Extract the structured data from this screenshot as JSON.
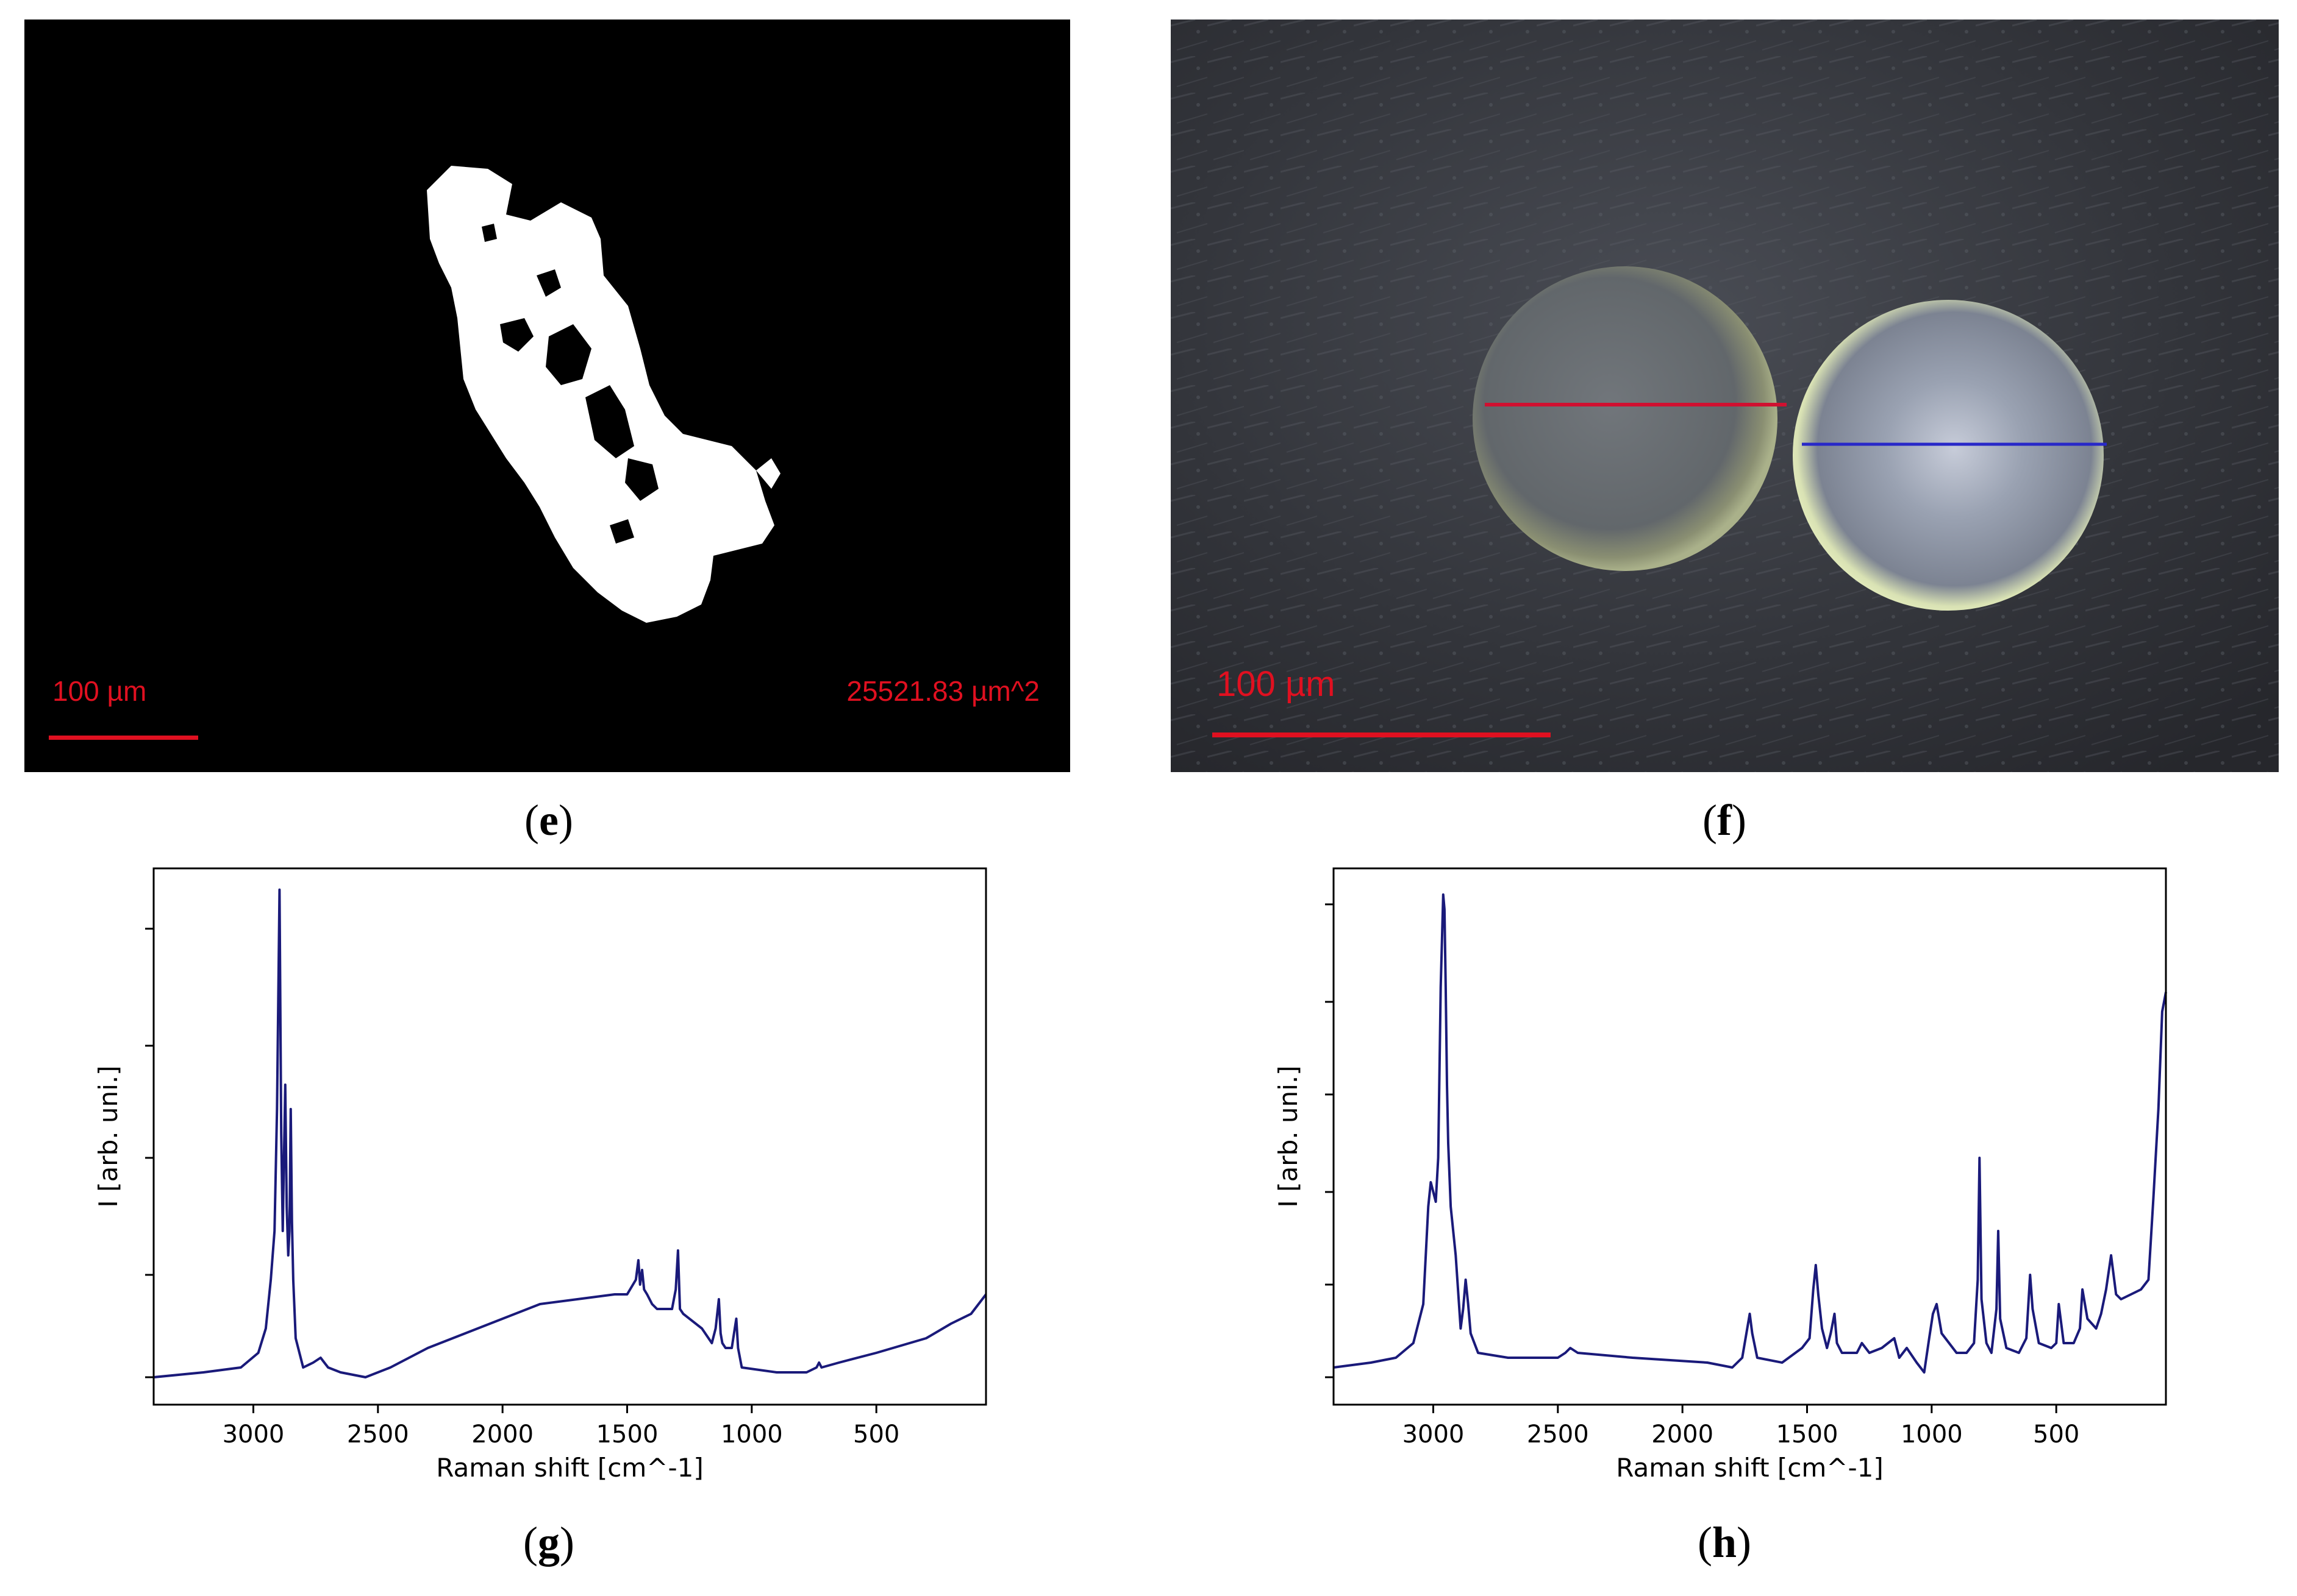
{
  "figure": {
    "panels": [
      {
        "id": "e",
        "caption_letter": "e",
        "scale_label": "100 µm",
        "area_label": "25521.83 µm^2"
      },
      {
        "id": "f",
        "caption_letter": "f",
        "scale_label": "100 µm"
      }
    ]
  },
  "colors": {
    "scale_bar": "#e01020",
    "spectrum_line": "#1a1a7a",
    "measure_red": "#d01030",
    "measure_blue": "#2828c8"
  },
  "chart_data": [
    {
      "id": "g",
      "type": "line",
      "caption_letter": "g",
      "xlabel": "Raman shift [cm^-1]",
      "ylabel": "I [arb. uni.]",
      "xlim": [
        3400,
        60
      ],
      "ylim": [
        0,
        1
      ],
      "x_ticks": [
        3000,
        2500,
        2000,
        1500,
        1000,
        500
      ],
      "x_tick_labels": [
        "3000",
        "2500",
        "2000",
        "1500",
        "1000",
        "500"
      ],
      "y_ticks": [
        0.0,
        0.21,
        0.45,
        0.68,
        0.92
      ],
      "y_tick_labels": [
        "",
        "",
        "",
        "",
        ""
      ],
      "series": [
        {
          "x": [
            3400,
            3200,
            3050,
            2980,
            2950,
            2930,
            2915,
            2905,
            2895,
            2888,
            2882,
            2878,
            2872,
            2866,
            2860,
            2855,
            2850,
            2845,
            2840,
            2830,
            2800,
            2760,
            2730,
            2715,
            2700,
            2650,
            2550,
            2450,
            2300,
            2150,
            2000,
            1850,
            1700,
            1550,
            1500,
            1465,
            1455,
            1448,
            1440,
            1432,
            1420,
            1400,
            1380,
            1320,
            1305,
            1296,
            1288,
            1275,
            1200,
            1160,
            1145,
            1132,
            1125,
            1118,
            1105,
            1080,
            1068,
            1062,
            1055,
            1040,
            900,
            780,
            740,
            730,
            720,
            650,
            500,
            300,
            200,
            120,
            60
          ],
          "y": [
            0.0,
            0.01,
            0.02,
            0.05,
            0.1,
            0.2,
            0.3,
            0.55,
            1.0,
            0.5,
            0.3,
            0.42,
            0.6,
            0.35,
            0.25,
            0.3,
            0.55,
            0.32,
            0.2,
            0.08,
            0.02,
            0.03,
            0.04,
            0.03,
            0.02,
            0.01,
            0.0,
            0.02,
            0.06,
            0.09,
            0.12,
            0.15,
            0.16,
            0.17,
            0.17,
            0.2,
            0.24,
            0.19,
            0.22,
            0.18,
            0.17,
            0.15,
            0.14,
            0.14,
            0.18,
            0.26,
            0.14,
            0.13,
            0.1,
            0.07,
            0.1,
            0.16,
            0.09,
            0.07,
            0.06,
            0.06,
            0.1,
            0.12,
            0.06,
            0.02,
            0.01,
            0.01,
            0.02,
            0.03,
            0.02,
            0.03,
            0.05,
            0.08,
            0.11,
            0.13,
            0.17
          ]
        }
      ]
    },
    {
      "id": "h",
      "type": "line",
      "caption_letter": "h",
      "xlabel": "Raman shift [cm^-1]",
      "ylabel": "I [arb. uni.]",
      "xlim": [
        3400,
        60
      ],
      "ylim": [
        0,
        1
      ],
      "x_ticks": [
        3000,
        2500,
        2000,
        1500,
        1000,
        500
      ],
      "x_tick_labels": [
        "3000",
        "2500",
        "2000",
        "1500",
        "1000",
        "500"
      ],
      "y_ticks": [
        0.0,
        0.19,
        0.38,
        0.58,
        0.77,
        0.97
      ],
      "y_tick_labels": [
        "",
        "",
        "",
        "",
        "",
        ""
      ],
      "series": [
        {
          "x": [
            3400,
            3250,
            3150,
            3080,
            3040,
            3020,
            3010,
            3000,
            2990,
            2980,
            2970,
            2960,
            2955,
            2950,
            2945,
            2940,
            2930,
            2910,
            2890,
            2880,
            2870,
            2860,
            2850,
            2820,
            2700,
            2500,
            2470,
            2450,
            2420,
            2200,
            1900,
            1800,
            1760,
            1740,
            1730,
            1720,
            1700,
            1600,
            1520,
            1490,
            1475,
            1465,
            1455,
            1440,
            1420,
            1405,
            1390,
            1380,
            1360,
            1300,
            1280,
            1250,
            1200,
            1150,
            1130,
            1100,
            1060,
            1030,
            1010,
            995,
            980,
            960,
            900,
            860,
            830,
            815,
            808,
            800,
            780,
            760,
            740,
            733,
            725,
            700,
            650,
            620,
            605,
            595,
            570,
            520,
            500,
            490,
            470,
            430,
            405,
            395,
            375,
            340,
            320,
            300,
            280,
            260,
            240,
            200,
            160,
            130,
            110,
            90,
            75,
            60
          ],
          "y": [
            0.02,
            0.03,
            0.04,
            0.07,
            0.15,
            0.35,
            0.4,
            0.38,
            0.36,
            0.45,
            0.8,
            0.99,
            0.96,
            0.8,
            0.6,
            0.48,
            0.35,
            0.25,
            0.1,
            0.14,
            0.2,
            0.15,
            0.09,
            0.05,
            0.04,
            0.04,
            0.05,
            0.06,
            0.05,
            0.04,
            0.03,
            0.02,
            0.04,
            0.1,
            0.13,
            0.09,
            0.04,
            0.03,
            0.06,
            0.08,
            0.18,
            0.23,
            0.17,
            0.1,
            0.06,
            0.09,
            0.13,
            0.07,
            0.05,
            0.05,
            0.07,
            0.05,
            0.06,
            0.08,
            0.04,
            0.06,
            0.03,
            0.01,
            0.08,
            0.13,
            0.15,
            0.09,
            0.05,
            0.05,
            0.07,
            0.2,
            0.45,
            0.16,
            0.07,
            0.05,
            0.14,
            0.3,
            0.12,
            0.06,
            0.05,
            0.08,
            0.21,
            0.14,
            0.07,
            0.06,
            0.07,
            0.15,
            0.07,
            0.07,
            0.1,
            0.18,
            0.12,
            0.1,
            0.13,
            0.18,
            0.25,
            0.17,
            0.16,
            0.17,
            0.18,
            0.2,
            0.37,
            0.55,
            0.75,
            0.79
          ]
        }
      ]
    }
  ]
}
